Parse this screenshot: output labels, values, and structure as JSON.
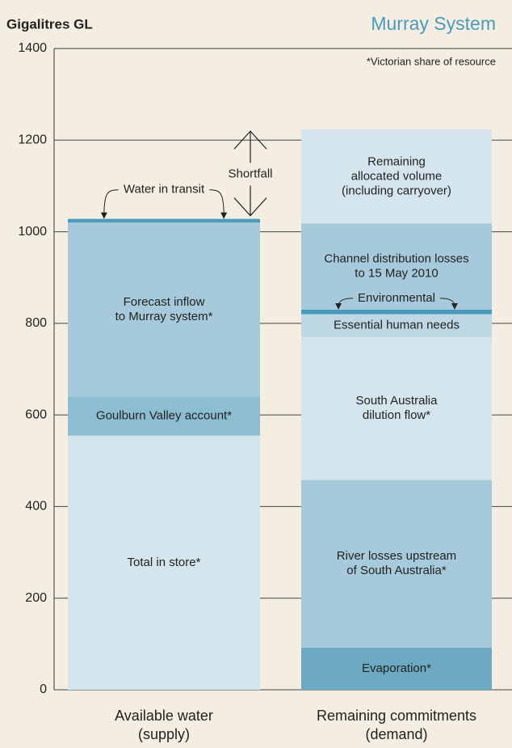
{
  "chart_data": {
    "type": "stacked_bar",
    "title": "Murray System",
    "y_label": "Gigalitres GL",
    "note": "*Victorian share of resource",
    "annotation": "Shortfall",
    "categories": [
      [
        "Available water",
        "(supply)"
      ],
      [
        "Remaining commitments",
        "(demand)"
      ]
    ],
    "ylim": [
      0,
      1400
    ],
    "yticks": [
      0,
      200,
      400,
      600,
      800,
      1000,
      1200,
      1400
    ],
    "grid": true,
    "series": [
      {
        "name": [
          "Total in store*"
        ],
        "color": "#d5e5ed",
        "values": [
          555,
          null
        ]
      },
      {
        "name": [
          "Goulburn Valley account*"
        ],
        "color": "#8cbdd1",
        "values": [
          85,
          null
        ]
      },
      {
        "name": [
          "Forecast inflow",
          "to Murray system*"
        ],
        "color": "#a6cadb",
        "values": [
          380,
          null
        ]
      },
      {
        "name": [
          "Water in transit"
        ],
        "color": "#4a9bbb",
        "values": [
          8,
          null
        ]
      },
      {
        "name": [
          "Evaporation*"
        ],
        "color": "#6ea9c4",
        "values": [
          null,
          92
        ]
      },
      {
        "name": [
          "River losses upstream",
          "of South Australia*"
        ],
        "color": "#a6cadb",
        "values": [
          null,
          366
        ]
      },
      {
        "name": [
          "South Australia",
          "dilution flow*"
        ],
        "color": "#d5e5ed",
        "values": [
          null,
          312
        ]
      },
      {
        "name": [
          "Essential human needs"
        ],
        "color": "#bdd8e4",
        "values": [
          null,
          50
        ]
      },
      {
        "name": [
          "Environmental"
        ],
        "color": "#4a9bbb",
        "values": [
          null,
          10
        ]
      },
      {
        "name": [
          "Channel distribution losses",
          "to 15 May 2010"
        ],
        "color": "#a6cadb",
        "values": [
          null,
          188
        ]
      },
      {
        "name": [
          "Remaining",
          "allocated volume",
          "(including carryover)"
        ],
        "color": "#d5e5ed",
        "values": [
          null,
          205
        ]
      }
    ]
  }
}
